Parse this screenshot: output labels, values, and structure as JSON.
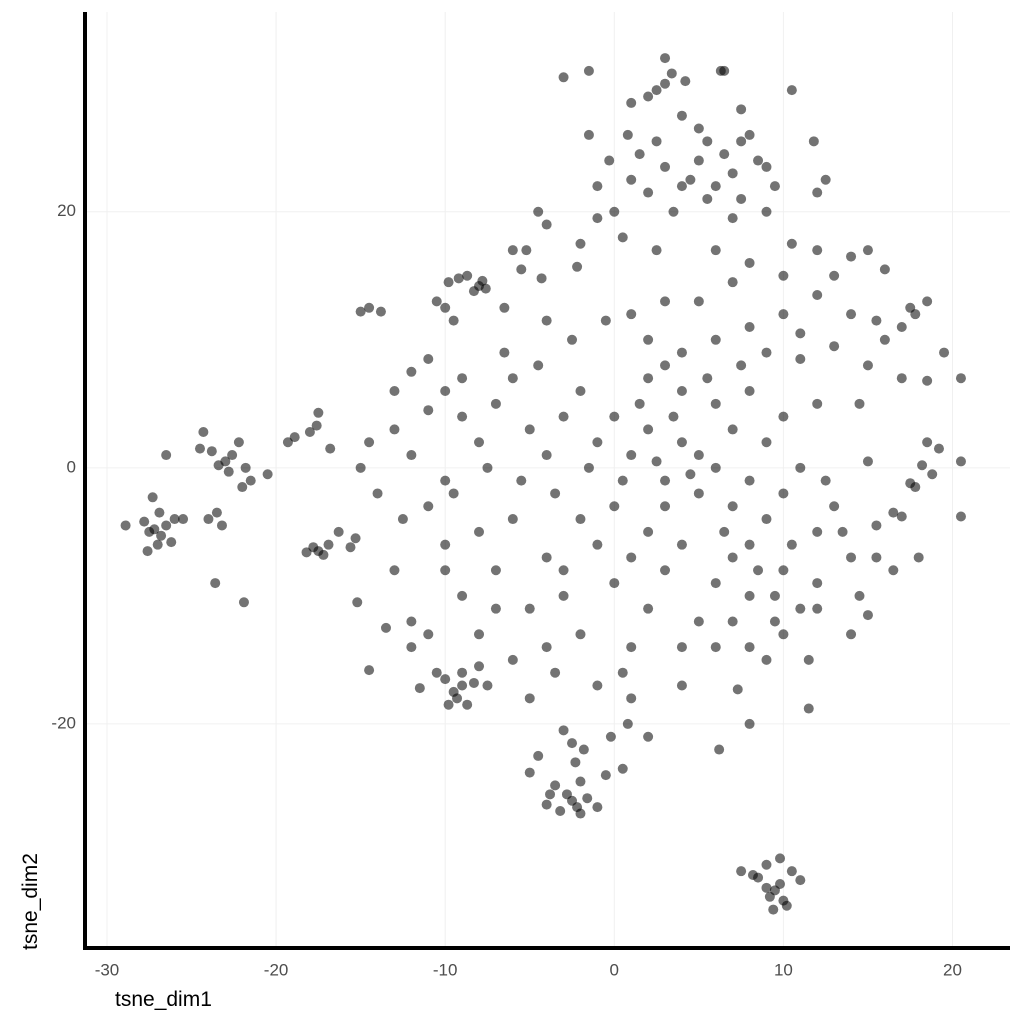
{
  "chart_data": {
    "type": "scatter",
    "x_label": "tsne_dim1",
    "y_label": "tsne_dim2",
    "color": "#000000",
    "alpha": 0.55,
    "grid": true,
    "xlim": [
      -31.3,
      23.4
    ],
    "ylim": [
      -37.5,
      35.6
    ],
    "xticks": [
      -30,
      -20,
      -10,
      0,
      10,
      20
    ],
    "yticks": [
      -20,
      0,
      20
    ],
    "x": [
      -27.2,
      -26.8,
      -27.5,
      -26.5,
      -27.0,
      -27.8,
      -26.2,
      -27.3,
      -28.9,
      -26.0,
      -27.6,
      -26.9,
      -23.0,
      -22.6,
      -23.4,
      -22.8,
      -23.8,
      -22.2,
      -24.3,
      -21.8,
      -23.5,
      -24.0,
      -23.2,
      -22.0,
      -24.5,
      -21.5,
      -23.6,
      -21.9,
      -25.5,
      -26.5,
      -17.5,
      -17.2,
      -17.8,
      -18.2,
      -16.9,
      -15.6,
      -17.6,
      -17.5,
      -18.9,
      -19.3,
      -18.0,
      -16.8,
      -20.5,
      -15.2,
      -15.3,
      -16.3,
      -8.0,
      -7.8,
      -8.3,
      -7.6,
      -9.2,
      -9.8,
      -8.7,
      -10.0,
      -10.5,
      -9.5,
      -14.5,
      -13.8,
      -6.0,
      -5.2,
      -5.5,
      -4.3,
      -4.0,
      -4.5,
      -4.0,
      -6.5,
      -2.0,
      -2.2,
      -9.5,
      -9.8,
      -9.0,
      -9.3,
      -10.0,
      -8.7,
      -8.3,
      -10.5,
      -11.5,
      -9.0,
      -7.5,
      -8.0,
      -2.5,
      -2.2,
      -2.8,
      -2.0,
      -3.2,
      -3.8,
      -3.5,
      -1.6,
      -1.0,
      -4.0,
      -2.3,
      -2.5,
      -3.0,
      -1.8,
      -4.5,
      -5.0,
      -0.5,
      0.5,
      -0.2,
      -2.0,
      9.5,
      9.2,
      9.8,
      9.0,
      10.0,
      9.4,
      8.5,
      10.5,
      9.8,
      7.5,
      8.2,
      11.0,
      9.0,
      10.2,
      11.5,
      6.2,
      8.0,
      7.3,
      -14.5,
      -15.0,
      3.0,
      2.5,
      3.4,
      2.0,
      4.2,
      3.0,
      -1.5,
      -3.0,
      6.3,
      6.5,
      7.5,
      10.5,
      1.0,
      0.8,
      -1.5,
      -1.0,
      -0.3,
      1.0,
      2.0,
      3.0,
      4.0,
      4.5,
      5.0,
      5.5,
      6.0,
      6.5,
      7.0,
      7.5,
      8.5,
      9.0,
      9.5,
      8.0,
      7.5,
      5.0,
      4.0,
      2.5,
      1.5,
      0.0,
      -1.0,
      0.5,
      2.5,
      11.8,
      12.5,
      12.0,
      3.5,
      5.5,
      7.0,
      9.0,
      6,
      8,
      10,
      12,
      14,
      15,
      16,
      17.5,
      17.8,
      18.5,
      17,
      15.5,
      14,
      12,
      10,
      8,
      6,
      4,
      3,
      2,
      5,
      7,
      9,
      11,
      13,
      15,
      17,
      19.5,
      20.5,
      18.5,
      14.5,
      12,
      10,
      8,
      6,
      4,
      2,
      3,
      1,
      10.5,
      13,
      11,
      16,
      9,
      7,
      5,
      18.2,
      17.8,
      18.5,
      18.8,
      19.2,
      17.5,
      17,
      16.5,
      15.5,
      15,
      20.5,
      20.5,
      18,
      16.5,
      15,
      14.5,
      -13,
      -12,
      -11,
      -10,
      -9,
      -8,
      -7,
      -6,
      -5,
      -4,
      -3,
      -2,
      -1,
      0,
      1,
      2,
      3,
      4,
      5,
      6,
      7,
      8,
      9,
      10,
      11,
      12,
      13,
      14,
      12,
      11,
      10,
      9,
      8,
      7,
      6,
      5,
      4,
      3,
      2,
      1,
      0,
      -1,
      -2,
      -3,
      -4,
      -5,
      -6,
      -7,
      -8,
      -9,
      -10,
      -11,
      -12,
      -13,
      -14,
      -12,
      -10,
      -8,
      -6,
      -4,
      -2,
      0,
      2,
      4,
      6,
      8,
      10,
      12,
      14,
      0.5,
      1,
      0.8,
      -1,
      2,
      -3.5,
      -5,
      -11,
      -13.5,
      -12,
      -14.5,
      -15,
      -12.5,
      -9.5,
      -7.5,
      -5.5,
      -3.5,
      -1.5,
      0.5,
      2.5,
      4.5,
      6.5,
      8.5,
      10.5,
      12.5,
      -6.5,
      -4.5,
      -2.5,
      -0.5,
      1.5,
      3.5,
      5.5,
      7.5,
      -11,
      -13,
      -9,
      -3,
      1,
      3,
      -7,
      -10,
      9.5,
      8,
      4,
      7,
      13.5,
      15.5,
      11.5,
      9.5
    ],
    "values": [
      -4.8,
      -5.3,
      -5.0,
      -4.5,
      -6.0,
      -4.2,
      -5.8,
      -2.3,
      -4.5,
      -4.0,
      -6.5,
      -3.5,
      0.5,
      1.0,
      0.2,
      -0.3,
      1.3,
      2.0,
      2.8,
      0.0,
      -3.5,
      -4.0,
      -4.5,
      -1.5,
      1.5,
      -1.0,
      -9.0,
      -10.5,
      -4.0,
      1.0,
      -6.5,
      -6.8,
      -6.2,
      -6.6,
      -6.0,
      -6.2,
      3.3,
      4.3,
      2.4,
      2.0,
      2.8,
      1.5,
      -0.5,
      -10.5,
      -5.5,
      -5.0,
      14.2,
      14.6,
      13.8,
      14.0,
      14.8,
      14.5,
      15.0,
      12.5,
      13.0,
      11.5,
      12.5,
      12.2,
      17.0,
      17.0,
      15.5,
      14.8,
      11.5,
      20.0,
      19.0,
      12.5,
      17.5,
      15.7,
      -17.5,
      -18.5,
      -17.0,
      -18.0,
      -16.5,
      -18.5,
      -16.8,
      -16.0,
      -17.2,
      -16.0,
      -17.0,
      -15.5,
      -26.0,
      -26.5,
      -25.5,
      -27.0,
      -26.8,
      -25.5,
      -24.8,
      -25.8,
      -26.5,
      -26.3,
      -23.0,
      -21.5,
      -20.5,
      -22.0,
      -22.5,
      -23.8,
      -24.0,
      -23.5,
      -21.0,
      -24.5,
      -33.0,
      -33.5,
      -32.5,
      -32.8,
      -33.8,
      -34.5,
      -32.0,
      -31.5,
      -30.5,
      -31.5,
      -31.8,
      -32.2,
      -31.0,
      -34.2,
      -18.8,
      -22.0,
      -20.0,
      -17.3,
      -15.8,
      12.2,
      30.0,
      29.5,
      30.8,
      29.0,
      30.2,
      32.0,
      31.0,
      30.5,
      31.0,
      31.0,
      28.0,
      29.5,
      28.5,
      26.0,
      26.0,
      22.0,
      24.0,
      22.5,
      21.5,
      23.5,
      22.0,
      22.5,
      24.0,
      25.5,
      22.0,
      24.5,
      23.0,
      21.0,
      24.0,
      23.5,
      22.0,
      26.0,
      25.5,
      26.5,
      27.5,
      25.5,
      24.5,
      20.0,
      19.5,
      18.0,
      17.0,
      25.5,
      22.5,
      21.5,
      20.0,
      21.0,
      19.5,
      20.0,
      17,
      16,
      15,
      17,
      16.5,
      17,
      15.5,
      12.5,
      12,
      13,
      11,
      11.5,
      12,
      13.5,
      12,
      11,
      10,
      9,
      8,
      10,
      13,
      14.5,
      9,
      8.5,
      9.5,
      8,
      7,
      9,
      7,
      6.8,
      5,
      5,
      4,
      6,
      5,
      6,
      7,
      13,
      12,
      17.5,
      15,
      10.5,
      10,
      2,
      3,
      1,
      0.2,
      -1.5,
      2,
      -0.5,
      1.5,
      -1.2,
      -3.8,
      -3.5,
      -4.5,
      0.5,
      -3.8,
      0.5,
      -7,
      -8,
      -11.5,
      -10,
      6,
      7.5,
      8.5,
      6,
      4,
      2,
      5,
      7,
      3,
      1,
      4,
      6,
      2,
      4,
      1,
      3,
      -1,
      2,
      -2,
      0,
      -3,
      -1,
      -4,
      -2,
      0,
      -5,
      -3,
      -7,
      -9,
      -11,
      -13,
      -15,
      -10,
      -7,
      -9,
      -12,
      -6,
      -8,
      -11,
      -14,
      -9,
      -6,
      -13,
      -10,
      -7,
      -11,
      -4,
      -8,
      -5,
      -10,
      -6,
      -3,
      -12,
      -8,
      -2,
      1,
      -1,
      -13,
      -15,
      -14,
      -4,
      -3,
      -5,
      -14,
      -14,
      -6,
      -8,
      -11,
      -13,
      -16,
      -18,
      -20,
      -17,
      -21,
      -16,
      -18,
      -13,
      -12.5,
      -14,
      2,
      0,
      -4,
      -2,
      0,
      -1,
      -2,
      0,
      -1,
      0.5,
      -0.5,
      -5,
      -8,
      -6,
      -1,
      9,
      8,
      10,
      11.5,
      5,
      4,
      7,
      8,
      4.5,
      3,
      7,
      -8,
      -7,
      -3,
      -11,
      -8,
      -12,
      -14,
      -17,
      -12,
      -5,
      -7,
      -15,
      -10
    ]
  }
}
